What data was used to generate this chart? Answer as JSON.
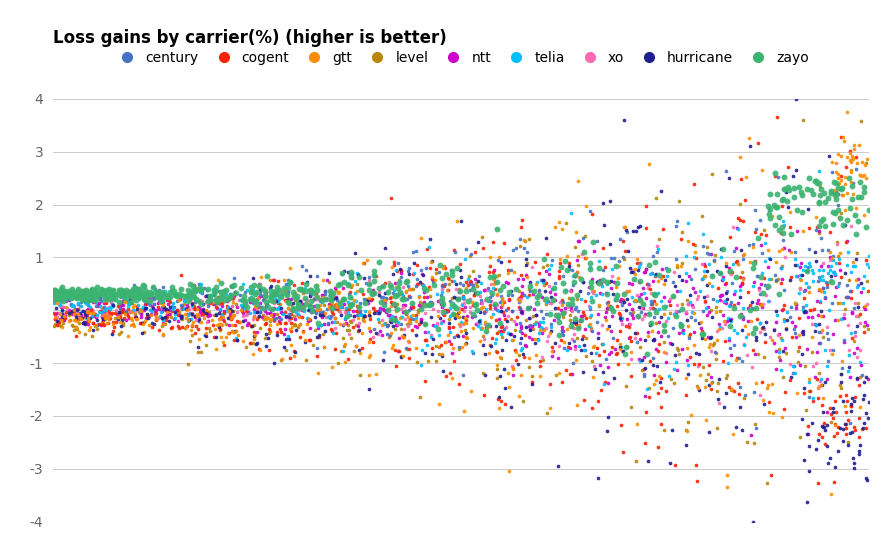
{
  "title": "Loss gains by carrier(%) (higher is better)",
  "carriers": [
    "century",
    "cogent",
    "gtt",
    "level",
    "ntt",
    "telia",
    "xo",
    "hurricane",
    "zayo"
  ],
  "colors": {
    "century": "#4472C4",
    "cogent": "#FF2200",
    "gtt": "#FF8C00",
    "level": "#B8860B",
    "ntt": "#CC00CC",
    "telia": "#00BFFF",
    "xo": "#FF69B4",
    "hurricane": "#1F1F8F",
    "zayo": "#3CB371"
  },
  "background_color": "#ffffff",
  "grid_color": "#cccccc",
  "figsize": [
    8.87,
    5.49
  ],
  "dpi": 100,
  "ylim": [
    -4,
    4
  ],
  "yticks": [
    -4,
    -3,
    -2,
    -1,
    0,
    1,
    2,
    3,
    4
  ],
  "ytick_labels": [
    "-4",
    "-3",
    "-2",
    "-1",
    "",
    "1",
    "2",
    "3",
    "4"
  ]
}
